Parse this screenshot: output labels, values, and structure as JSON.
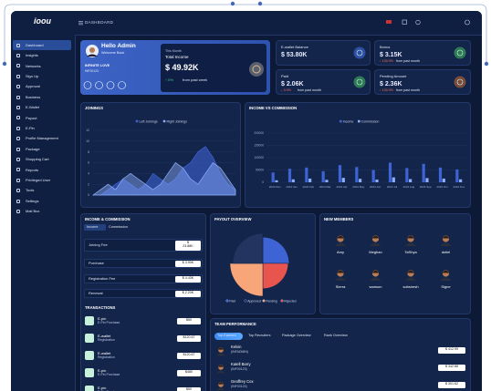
{
  "brand": "ioou",
  "topbar": {
    "title": "DASHBOARD"
  },
  "sidebar": [
    "Dashboard",
    "Insights",
    "Networks",
    "Sign Up",
    "Approval",
    "Business",
    "E-Wallet",
    "Payout",
    "E-Pin",
    "Profile Management",
    "Package",
    "Shopping Cart",
    "Reports",
    "Privileged User",
    "Tools",
    "Settings",
    "Mail Box"
  ],
  "profile": {
    "greeting": "Hello Admin",
    "subtitle": "Welcome Back",
    "username": "INFINITE LOVE",
    "user_id": "INF00123",
    "period": "This Month",
    "income_label": "Total Income",
    "income": "$ 49.92K",
    "change": "↑ 0%",
    "note": "from past week"
  },
  "stats": [
    {
      "label": "E-wallet Balance",
      "value": "$ 53.80K"
    },
    {
      "label": "Bonus",
      "value": "$ 3.15K",
      "change": "↑ 100.0%",
      "note": "from past month"
    },
    {
      "label": "Paid",
      "value": "$ 2.06K",
      "change": "↓ 0.0%",
      "note": "from past month"
    },
    {
      "label": "Pending Amount",
      "value": "$ 2.36K",
      "change": "↑ 100.0%",
      "note": "from past month"
    }
  ],
  "joinings": {
    "type": "area",
    "title": "JOININGS",
    "ylim": [
      0,
      12
    ],
    "yticks": [
      0,
      2,
      4,
      6,
      8,
      10,
      12
    ],
    "series": [
      {
        "name": "Left Joinings",
        "color": "#3d63d4",
        "values": [
          0,
          0,
          1,
          2,
          3,
          2,
          1,
          2,
          4,
          3,
          2,
          3,
          5,
          6,
          8,
          9,
          7,
          4,
          2,
          1
        ]
      },
      {
        "name": "Right Joinings",
        "color": "#8eaefc",
        "values": [
          0,
          1,
          2,
          1,
          3,
          4,
          3,
          2,
          1,
          2,
          4,
          6,
          5,
          3,
          2,
          4,
          6,
          5,
          3,
          1
        ]
      }
    ]
  },
  "income_chart": {
    "type": "bar",
    "title": "INCOME VS COMMISSION",
    "categories": [
      "2023 Dec",
      "2024 Jan",
      "2024 Feb",
      "2024 Mar",
      "2024 Apr",
      "2024 May",
      "2024 Jun",
      "2024 Jul",
      "2024 Aug",
      "2024 Sep",
      "2024 Oct",
      "2024 Nov"
    ],
    "ylim": [
      0,
      200000
    ],
    "yticks": [
      0,
      50000,
      100000,
      150000,
      200000
    ],
    "series": [
      {
        "name": "Income",
        "color": "#3d63d4",
        "values": [
          40000,
          55000,
          60000,
          45000,
          70000,
          62000,
          50000,
          80000,
          58000,
          75000,
          60000,
          52000
        ]
      },
      {
        "name": "Commission",
        "color": "#8eaefc",
        "values": [
          8000,
          12000,
          15000,
          10000,
          18000,
          14000,
          11000,
          20000,
          13000,
          17000,
          15000,
          12000
        ]
      }
    ]
  },
  "income": {
    "title": "INCOME & COMMISSION",
    "tabs": [
      "Income",
      "Commission"
    ],
    "rows": [
      {
        "label": "Joining Fee",
        "value": "$ 23.88K"
      },
      {
        "label": "Purchase",
        "value": "$ 3.90K"
      },
      {
        "label": "Registration Fee",
        "value": "$ 4.43K"
      },
      {
        "label": "Renewal",
        "value": "$ 2.20K"
      }
    ]
  },
  "transactions": {
    "title": "TRANSACTIONS",
    "rows": [
      {
        "name": "E-pin",
        "type": "E-Pin Purchase",
        "amount": "$50"
      },
      {
        "name": "E-wallet",
        "type": "Registration",
        "amount": "$120.67"
      },
      {
        "name": "E-wallet",
        "type": "Registration",
        "amount": "$120.67"
      },
      {
        "name": "E-pin",
        "type": "E-Pin Purchase",
        "amount": "$480"
      },
      {
        "name": "E-pin",
        "type": "E-Pin Purchase",
        "amount": "$50"
      }
    ]
  },
  "payout": {
    "type": "polar",
    "title": "PAYOUT OVERVIEW",
    "series": [
      {
        "name": "Paid",
        "color": "#3d63d4",
        "value": 28
      },
      {
        "name": "Approved",
        "color": "#22345f",
        "value": 32
      },
      {
        "name": "Pending",
        "color": "#f8a57a",
        "value": 35
      },
      {
        "name": "Rejected",
        "color": "#e8544e",
        "value": 27
      }
    ]
  },
  "members": {
    "title": "NEW MEMBERS",
    "names": [
      "Amy",
      "Meghan",
      "TaShya",
      "dutiel",
      "Sierra",
      "samson",
      "sobsiresh",
      "Signe"
    ]
  },
  "team": {
    "title": "TEAM PERFORMANCE",
    "tabs": [
      "Top Earners",
      "Top Recruiters",
      "Package Overview",
      "Rank Overview"
    ],
    "rows": [
      {
        "name": "Kelvin",
        "id": "(INFADMIN)",
        "amount": "$ 412.99"
      },
      {
        "name": "Katell Barry",
        "id": "(INF00123)",
        "amount": "$ 342.88"
      },
      {
        "name": "Geoffrey Cox",
        "id": "(INF00124)",
        "amount": "$ 301.62"
      }
    ]
  }
}
